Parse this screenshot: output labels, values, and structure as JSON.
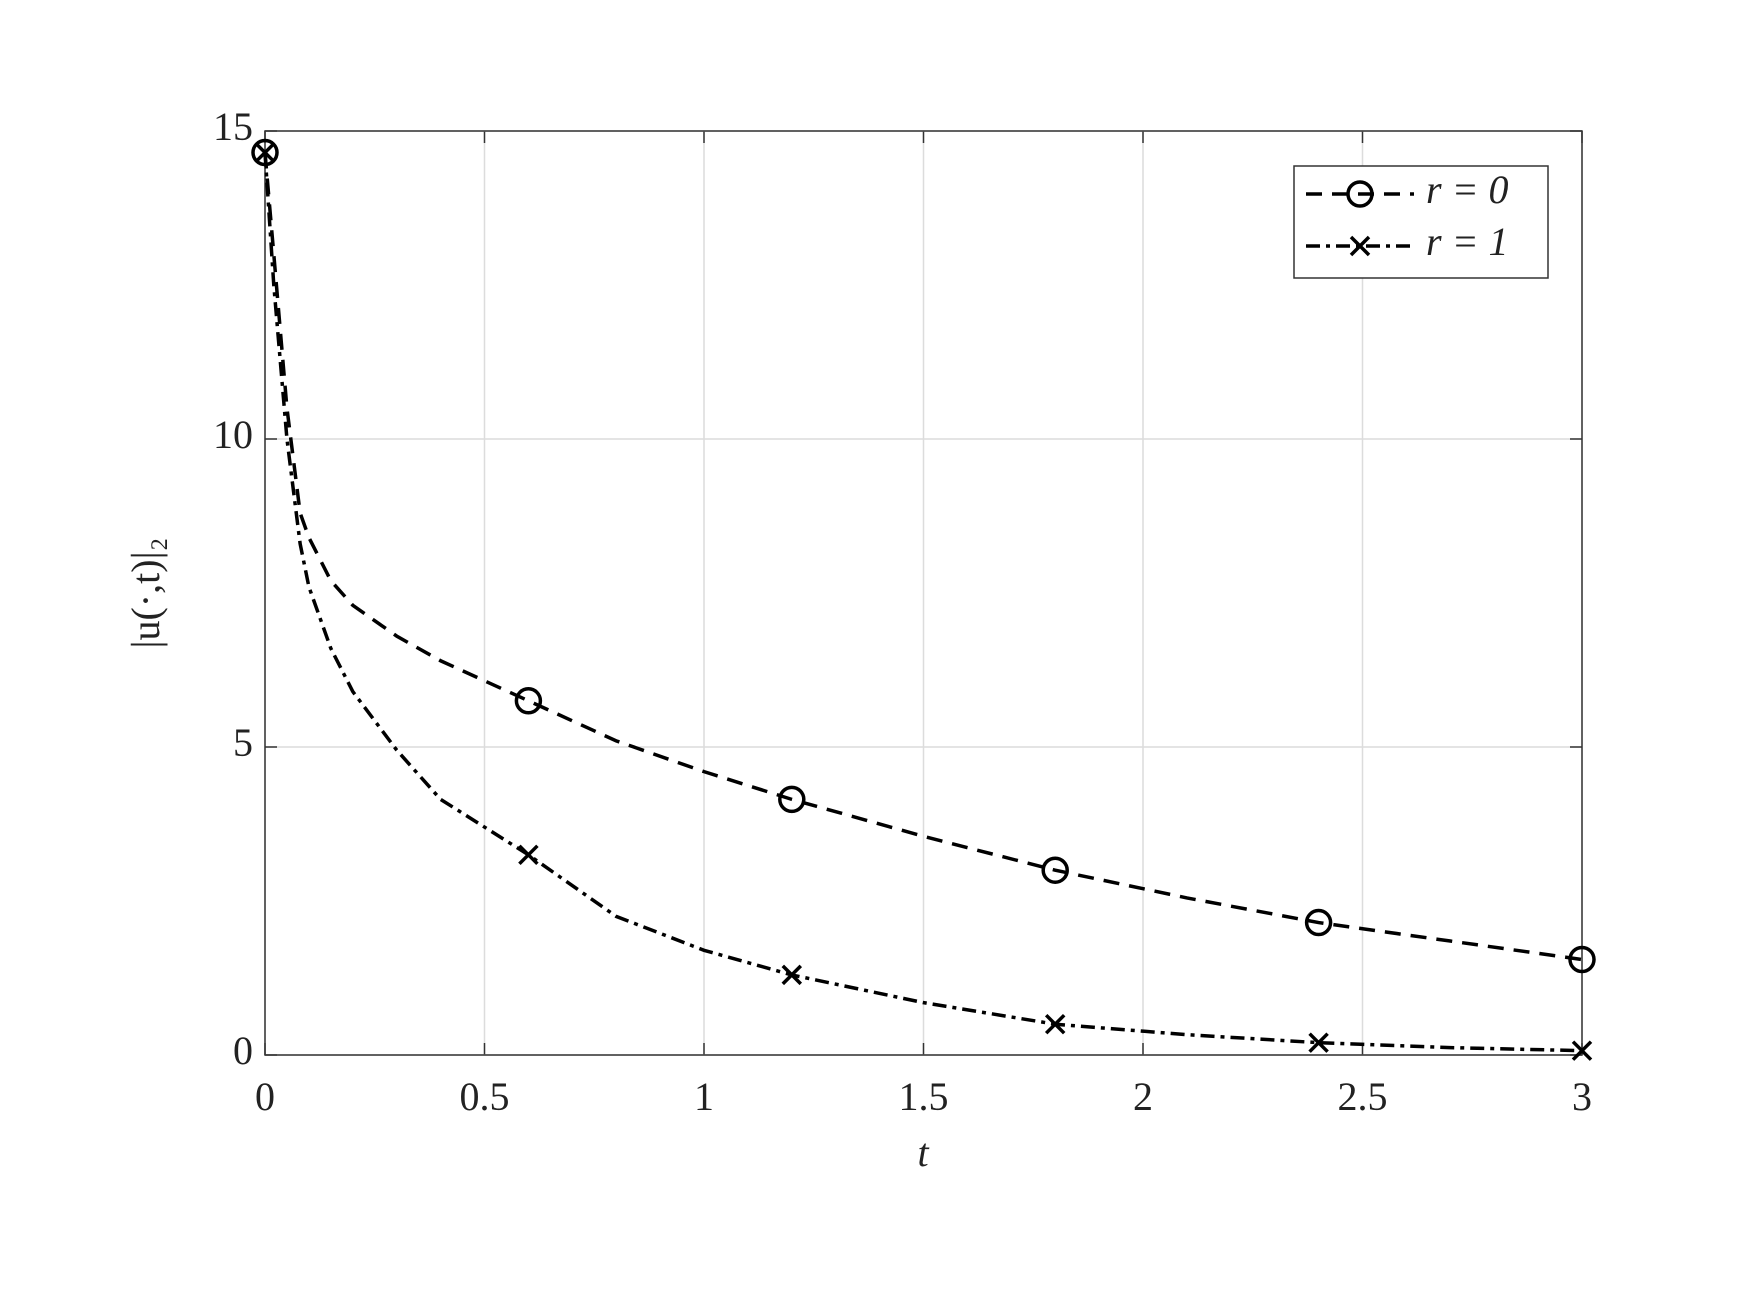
{
  "chart_data": {
    "type": "line",
    "xlabel": "t",
    "ylabel": "|u(·,t)|₂",
    "xlim": [
      0,
      3
    ],
    "ylim": [
      0,
      15
    ],
    "xticks": [
      0,
      0.5,
      1,
      1.5,
      2,
      2.5,
      3
    ],
    "yticks": [
      0,
      5,
      10,
      15
    ],
    "grid": true,
    "legend": "upper right",
    "series": [
      {
        "name": "r = 0",
        "color": "#000000",
        "linestyle": "--",
        "marker": "o",
        "x": [
          0,
          0.02,
          0.05,
          0.08,
          0.1,
          0.15,
          0.2,
          0.3,
          0.4,
          0.6,
          0.8,
          1.0,
          1.2,
          1.5,
          1.8,
          2.1,
          2.4,
          2.7,
          3.0
        ],
        "values": [
          14.65,
          13,
          10.5,
          8.8,
          8.4,
          7.7,
          7.3,
          6.8,
          6.4,
          5.75,
          5.1,
          4.6,
          4.15,
          3.55,
          3.0,
          2.55,
          2.15,
          1.85,
          1.55
        ]
      },
      {
        "name": "r = 1",
        "color": "#000000",
        "linestyle": "-.",
        "marker": "x",
        "x": [
          0,
          0.02,
          0.05,
          0.08,
          0.1,
          0.15,
          0.2,
          0.3,
          0.4,
          0.6,
          0.8,
          1.0,
          1.2,
          1.5,
          1.8,
          2.1,
          2.4,
          2.7,
          3.0
        ],
        "values": [
          14.65,
          12.5,
          10,
          8.3,
          7.6,
          6.6,
          5.9,
          4.95,
          4.15,
          3.25,
          2.25,
          1.7,
          1.3,
          0.85,
          0.5,
          0.33,
          0.2,
          0.12,
          0.07
        ]
      }
    ]
  }
}
